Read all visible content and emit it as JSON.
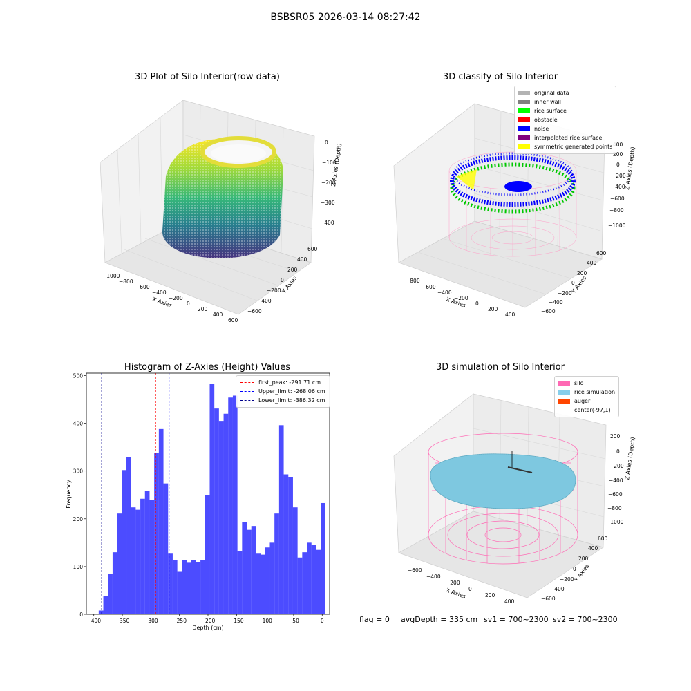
{
  "figure": {
    "suptitle": "BSBSR05 2026-03-14 08:27:42"
  },
  "chart_data": [
    {
      "type": "scatter",
      "title": "3D Plot of Silo Interior(row data)",
      "xlabel": "X Axies",
      "ylabel": "Y Axies",
      "zlabel": "Z Axies (Depth)",
      "xticks": [
        "−1000",
        "−800",
        "−600",
        "−400",
        "−200",
        "0",
        "200",
        "400",
        "600"
      ],
      "yticks": [
        "600",
        "400",
        "200",
        "0",
        "−200",
        "−400",
        "−600"
      ],
      "zticks": [
        "0",
        "−100",
        "−200",
        "−300",
        "−400"
      ],
      "colormap": "viridis"
    },
    {
      "type": "scatter",
      "title": "3D classify of Silo Interior",
      "xlabel": "X Axies",
      "ylabel": "Y Axies",
      "zlabel": "Z Axies (Depth)",
      "xticks": [
        "−800",
        "−600",
        "−400",
        "−200",
        "0",
        "200",
        "400"
      ],
      "yticks": [
        "600",
        "400",
        "200",
        "0",
        "−200",
        "−400",
        "−600"
      ],
      "zticks": [
        "400",
        "200",
        "0",
        "−200",
        "−400",
        "−600",
        "−800",
        "−1000"
      ],
      "legend": [
        {
          "label": "original data",
          "color": "#b3b3b3"
        },
        {
          "label": "inner wall",
          "color": "#808080"
        },
        {
          "label": "rice surface",
          "color": "#00ff00"
        },
        {
          "label": "obstacle",
          "color": "#ff0000"
        },
        {
          "label": "noise",
          "color": "#0000ff"
        },
        {
          "label": "interpolated rice surface",
          "color": "#800080"
        },
        {
          "label": "symmetric generated points",
          "color": "#ffff00"
        }
      ]
    },
    {
      "type": "bar",
      "title": "Histogram of Z-Axies (Height) Values",
      "xlabel": "Depth (cm)",
      "ylabel": "Frequency",
      "xlim": [
        -413,
        13
      ],
      "ylim": [
        0,
        505
      ],
      "xticks": [
        -400,
        -350,
        -300,
        -250,
        -200,
        -150,
        -100,
        -50,
        0
      ],
      "yticks": [
        0,
        100,
        200,
        300,
        400,
        500
      ],
      "bar_color": "#0000ff",
      "bin_width": 8.1,
      "bins_start": [
        -391.4,
        -383.3,
        -375.2,
        -367.1,
        -359.0,
        -350.9,
        -342.8,
        -334.7,
        -326.6,
        -318.5,
        -310.4,
        -302.3,
        -294.2,
        -286.1,
        -278.0,
        -269.9,
        -261.8,
        -253.7,
        -245.6,
        -237.5,
        -229.4,
        -221.3,
        -213.2,
        -205.1,
        -197.0,
        -188.9,
        -180.8,
        -172.7,
        -164.6,
        -156.5,
        -148.4,
        -140.3,
        -132.2,
        -124.1,
        -116.0,
        -107.9,
        -99.8,
        -91.7,
        -83.6,
        -75.5,
        -67.4,
        -59.3,
        -51.2,
        -43.1,
        -35.0,
        -26.9,
        -18.8,
        -10.7,
        -2.6
      ],
      "values": [
        8,
        38,
        85,
        130,
        211,
        302,
        329,
        224,
        219,
        242,
        258,
        239,
        338,
        388,
        274,
        127,
        113,
        89,
        114,
        108,
        113,
        109,
        113,
        249,
        483,
        431,
        405,
        420,
        454,
        458,
        133,
        193,
        177,
        185,
        127,
        125,
        140,
        150,
        211,
        396,
        293,
        287,
        224,
        119,
        130,
        150,
        146,
        135,
        233
      ],
      "lines": [
        {
          "label": "first_peak: -291.71 cm",
          "x": -291.71,
          "color": "#ff0000"
        },
        {
          "label": "Upper_limit: -268.06 cm",
          "x": -268.06,
          "color": "#0000ff"
        },
        {
          "label": "Lower_limit: -386.32 cm",
          "x": -386.32,
          "color": "#00008b"
        }
      ]
    },
    {
      "type": "scatter",
      "title": "3D simulation of Silo Interior",
      "xlabel": "X Axies",
      "ylabel": "Y Axies",
      "zlabel": "Z Axies (Depth)",
      "xticks": [
        "−600",
        "−400",
        "−200",
        "0",
        "200",
        "400"
      ],
      "yticks": [
        "600",
        "400",
        "200",
        "0",
        "−200",
        "−400",
        "−600"
      ],
      "zticks": [
        "200",
        "0",
        "−200",
        "−400",
        "−600",
        "−800",
        "−1000"
      ],
      "legend": [
        {
          "label": "silo",
          "color": "#ff69b4"
        },
        {
          "label": "rice simulation",
          "color": "#87ceeb"
        },
        {
          "label": "auger",
          "color": "#ff4500"
        },
        {
          "label": "center(-97,1)",
          "color": ""
        }
      ]
    }
  ],
  "footer": {
    "flag": "flag = 0",
    "avg": "avgDepth = 335 cm",
    "sv1": "sv1 = 700~2300",
    "sv2": "sv2 = 700~2300"
  }
}
